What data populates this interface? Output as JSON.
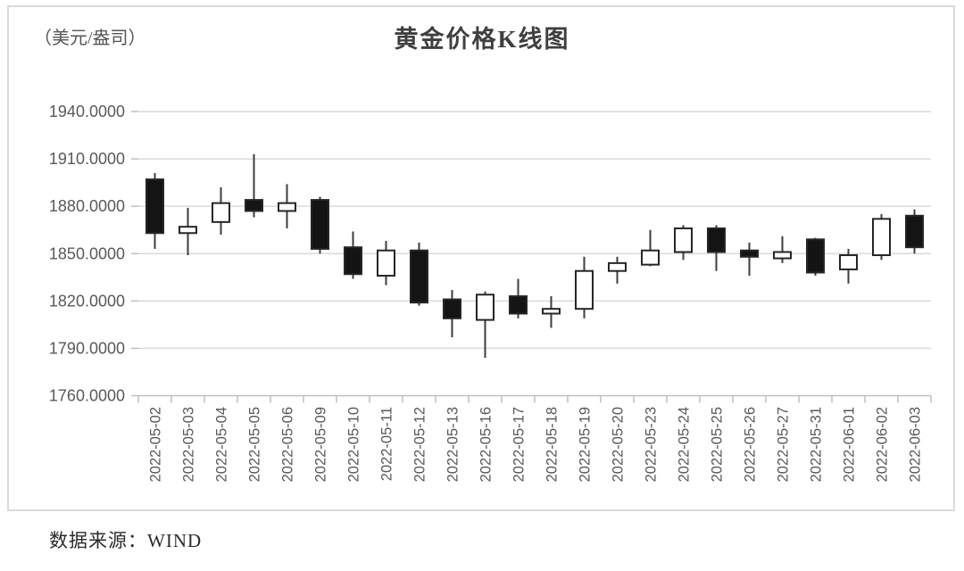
{
  "header": {
    "title": "黄金价格K线图",
    "unit_label": "（美元/盎司）"
  },
  "footer": {
    "source": "数据来源：WIND"
  },
  "colors": {
    "up_fill": "#ffffff",
    "down_fill": "#141414",
    "candle_stroke": "#262626",
    "wick": "#3d3d3d",
    "gridline": "#d9d9d9",
    "axis_line": "#bfbfbf",
    "tick": "#bfbfbf",
    "axis_text": "#595959",
    "title_text": "#3f3f3f",
    "frame_border": "#dadada"
  },
  "chart_data": {
    "type": "candlestick",
    "title": "黄金价格K线图",
    "ylabel": "（美元/盎司）",
    "source": "数据来源：WIND",
    "ylim": [
      1760,
      1940
    ],
    "ytick_step": 30,
    "grid": true,
    "legend": "none",
    "yticks": [
      {
        "value": 1940,
        "label": "1940.0000"
      },
      {
        "value": 1910,
        "label": "1910.0000"
      },
      {
        "value": 1880,
        "label": "1880.0000"
      },
      {
        "value": 1850,
        "label": "1850.0000"
      },
      {
        "value": 1820,
        "label": "1820.0000"
      },
      {
        "value": 1790,
        "label": "1790.0000"
      },
      {
        "value": 1760,
        "label": "1760.0000"
      }
    ],
    "categories": [
      "2022-05-02",
      "2022-05-03",
      "2022-05-04",
      "2022-05-05",
      "2022-05-06",
      "2022-05-09",
      "2022-05-10",
      "2022-05-11",
      "2022-05-12",
      "2022-05-13",
      "2022-05-16",
      "2022-05-17",
      "2022-05-18",
      "2022-05-19",
      "2022-05-20",
      "2022-05-23",
      "2022-05-24",
      "2022-05-25",
      "2022-05-26",
      "2022-05-27",
      "2022-05-31",
      "2022-06-01",
      "2022-06-02",
      "2022-06-03"
    ],
    "ohlc": [
      {
        "date": "2022-05-02",
        "open": 1897,
        "high": 1901,
        "low": 1853,
        "close": 1863
      },
      {
        "date": "2022-05-03",
        "open": 1863,
        "high": 1879,
        "low": 1849,
        "close": 1867
      },
      {
        "date": "2022-05-04",
        "open": 1870,
        "high": 1892,
        "low": 1862,
        "close": 1882
      },
      {
        "date": "2022-05-05",
        "open": 1884,
        "high": 1913,
        "low": 1873,
        "close": 1877
      },
      {
        "date": "2022-05-06",
        "open": 1877,
        "high": 1894,
        "low": 1866,
        "close": 1882
      },
      {
        "date": "2022-05-09",
        "open": 1884,
        "high": 1886,
        "low": 1850,
        "close": 1853
      },
      {
        "date": "2022-05-10",
        "open": 1854,
        "high": 1864,
        "low": 1834,
        "close": 1837
      },
      {
        "date": "2022-05-11",
        "open": 1836,
        "high": 1858,
        "low": 1830,
        "close": 1852
      },
      {
        "date": "2022-05-12",
        "open": 1852,
        "high": 1857,
        "low": 1817,
        "close": 1819
      },
      {
        "date": "2022-05-13",
        "open": 1821,
        "high": 1827,
        "low": 1797,
        "close": 1809
      },
      {
        "date": "2022-05-16",
        "open": 1808,
        "high": 1826,
        "low": 1784,
        "close": 1824
      },
      {
        "date": "2022-05-17",
        "open": 1823,
        "high": 1834,
        "low": 1809,
        "close": 1812
      },
      {
        "date": "2022-05-18",
        "open": 1812,
        "high": 1823,
        "low": 1803,
        "close": 1815
      },
      {
        "date": "2022-05-19",
        "open": 1815,
        "high": 1848,
        "low": 1809,
        "close": 1839
      },
      {
        "date": "2022-05-20",
        "open": 1839,
        "high": 1848,
        "low": 1831,
        "close": 1844
      },
      {
        "date": "2022-05-23",
        "open": 1843,
        "high": 1865,
        "low": 1842,
        "close": 1852
      },
      {
        "date": "2022-05-24",
        "open": 1851,
        "high": 1868,
        "low": 1846,
        "close": 1866
      },
      {
        "date": "2022-05-25",
        "open": 1866,
        "high": 1868,
        "low": 1839,
        "close": 1851
      },
      {
        "date": "2022-05-26",
        "open": 1852,
        "high": 1857,
        "low": 1836,
        "close": 1848
      },
      {
        "date": "2022-05-27",
        "open": 1847,
        "high": 1861,
        "low": 1844,
        "close": 1851
      },
      {
        "date": "2022-05-31",
        "open": 1859,
        "high": 1860,
        "low": 1836,
        "close": 1838
      },
      {
        "date": "2022-06-01",
        "open": 1840,
        "high": 1853,
        "low": 1831,
        "close": 1849
      },
      {
        "date": "2022-06-02",
        "open": 1849,
        "high": 1875,
        "low": 1846,
        "close": 1872
      },
      {
        "date": "2022-06-03",
        "open": 1874,
        "high": 1878,
        "low": 1850,
        "close": 1854
      }
    ]
  }
}
